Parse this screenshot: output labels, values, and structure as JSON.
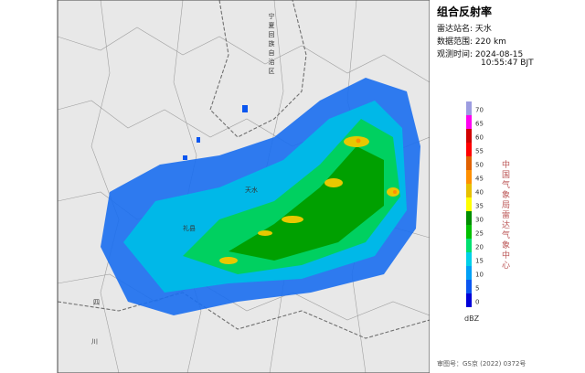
{
  "header": {
    "title": "组合反射率",
    "station_label": "雷达站名:",
    "station": "天水",
    "range_label": "数据范围:",
    "range": "220 km",
    "time_label": "观测时间:",
    "date": "2024-08-15",
    "time": "10:55:47 BJT"
  },
  "legend": {
    "unit": "dBZ",
    "agency": "中国气象局雷达气象中心",
    "ticks": [
      0,
      5,
      10,
      15,
      20,
      25,
      30,
      35,
      40,
      45,
      50,
      55,
      60,
      65,
      70
    ],
    "colors": [
      "#0000d8",
      "#0a56f0",
      "#00a0f6",
      "#00d0e8",
      "#00e070",
      "#00c000",
      "#008e00",
      "#ffff00",
      "#e7c000",
      "#ff9000",
      "#e06000",
      "#ff0000",
      "#d00000",
      "#ff00f0",
      "#9c9ce0"
    ]
  },
  "map": {
    "labels": [
      "宁夏回族自治区",
      "天水",
      "礼县",
      "川",
      "四"
    ]
  },
  "footer": "审图号：GS京 (2022) 0372号"
}
